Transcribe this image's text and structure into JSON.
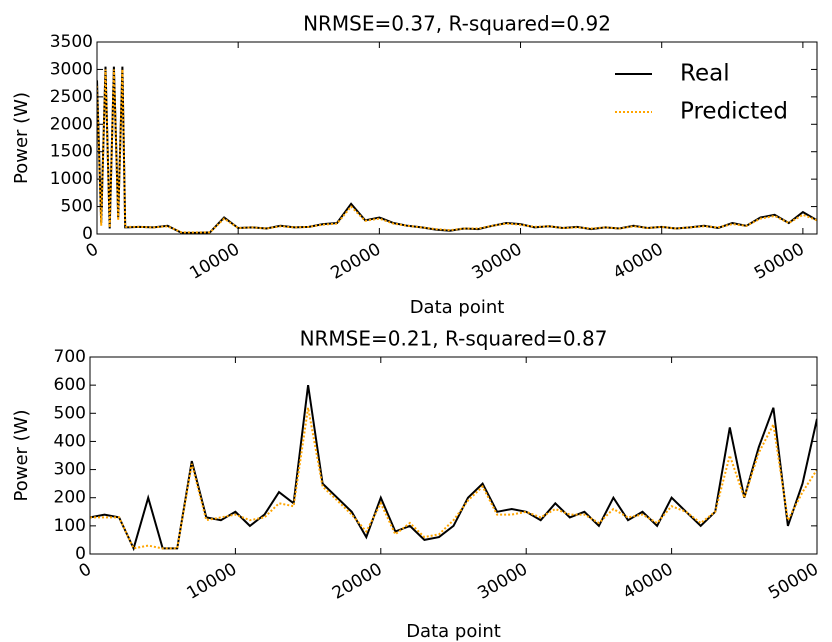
{
  "chart_data": [
    {
      "type": "line",
      "title": "NRMSE=0.37, R-squared=0.92",
      "xlabel": "Data point",
      "ylabel": "Power (W)",
      "x": [
        0,
        300,
        600,
        900,
        1200,
        1500,
        1800,
        2000,
        3000,
        4000,
        5000,
        6000,
        7000,
        8000,
        9000,
        10000,
        11000,
        12000,
        13000,
        14000,
        15000,
        16000,
        17000,
        18000,
        19000,
        20000,
        21000,
        22000,
        23000,
        24000,
        25000,
        26000,
        27000,
        28000,
        29000,
        30000,
        31000,
        32000,
        33000,
        34000,
        35000,
        36000,
        37000,
        38000,
        39000,
        40000,
        41000,
        42000,
        43000,
        44000,
        45000,
        46000,
        47000,
        48000,
        49000,
        50000,
        51000
      ],
      "series": [
        {
          "name": "Real",
          "color": "#000000",
          "linestyle": "solid",
          "values": [
            2800,
            200,
            3050,
            100,
            3050,
            300,
            3050,
            120,
            130,
            120,
            150,
            20,
            20,
            30,
            300,
            110,
            120,
            100,
            150,
            120,
            130,
            180,
            200,
            550,
            250,
            300,
            200,
            150,
            120,
            80,
            60,
            100,
            90,
            150,
            200,
            180,
            120,
            140,
            110,
            130,
            90,
            120,
            100,
            150,
            110,
            130,
            100,
            120,
            150,
            110,
            200,
            150,
            300,
            350,
            200,
            400,
            250
          ]
        },
        {
          "name": "Predicted",
          "color": "#ffa500",
          "linestyle": "dotted",
          "values": [
            2700,
            150,
            3000,
            120,
            3000,
            250,
            3000,
            130,
            130,
            120,
            140,
            30,
            30,
            30,
            280,
            110,
            120,
            100,
            140,
            120,
            130,
            170,
            190,
            500,
            240,
            280,
            190,
            150,
            120,
            90,
            70,
            100,
            100,
            150,
            190,
            170,
            130,
            140,
            110,
            120,
            100,
            120,
            100,
            140,
            110,
            130,
            100,
            120,
            140,
            120,
            180,
            150,
            280,
            330,
            200,
            350,
            250
          ]
        }
      ],
      "xlim": [
        0,
        51000
      ],
      "ylim": [
        0,
        3500
      ],
      "xticks": [
        0,
        10000,
        20000,
        30000,
        40000,
        50000
      ],
      "yticks": [
        0,
        500,
        1000,
        1500,
        2000,
        2500,
        3000,
        3500
      ],
      "legend": "upper right"
    },
    {
      "type": "line",
      "title": "NRMSE=0.21, R-squared=0.87",
      "xlabel": "Data point",
      "ylabel": "Power (W)",
      "x": [
        0,
        1000,
        2000,
        3000,
        4000,
        5000,
        6000,
        7000,
        8000,
        9000,
        10000,
        11000,
        12000,
        13000,
        14000,
        15000,
        16000,
        17000,
        18000,
        19000,
        20000,
        21000,
        22000,
        23000,
        24000,
        25000,
        26000,
        27000,
        28000,
        29000,
        30000,
        31000,
        32000,
        33000,
        34000,
        35000,
        36000,
        37000,
        38000,
        39000,
        40000,
        41000,
        42000,
        43000,
        44000,
        45000,
        46000,
        47000,
        48000,
        49000,
        50000
      ],
      "series": [
        {
          "color": "#000000",
          "linestyle": "solid",
          "values": [
            130,
            140,
            130,
            20,
            200,
            20,
            20,
            330,
            130,
            120,
            150,
            100,
            140,
            220,
            180,
            600,
            250,
            200,
            150,
            60,
            200,
            80,
            100,
            50,
            60,
            100,
            200,
            250,
            150,
            160,
            150,
            120,
            180,
            130,
            150,
            100,
            200,
            120,
            150,
            100,
            200,
            150,
            100,
            150,
            450,
            200,
            380,
            520,
            100,
            250,
            480
          ]
        },
        {
          "color": "#ffa500",
          "linestyle": "dotted",
          "values": [
            130,
            130,
            130,
            20,
            30,
            20,
            20,
            320,
            120,
            130,
            140,
            120,
            130,
            180,
            170,
            520,
            240,
            190,
            140,
            80,
            180,
            70,
            110,
            60,
            70,
            120,
            190,
            240,
            140,
            140,
            150,
            130,
            160,
            140,
            140,
            110,
            160,
            130,
            140,
            110,
            170,
            150,
            110,
            150,
            350,
            200,
            360,
            460,
            120,
            220,
            300
          ]
        }
      ],
      "xlim": [
        0,
        50000
      ],
      "ylim": [
        0,
        700
      ],
      "xticks": [
        0,
        10000,
        20000,
        30000,
        40000,
        50000
      ],
      "yticks": [
        0,
        100,
        200,
        300,
        400,
        500,
        600,
        700
      ]
    }
  ]
}
